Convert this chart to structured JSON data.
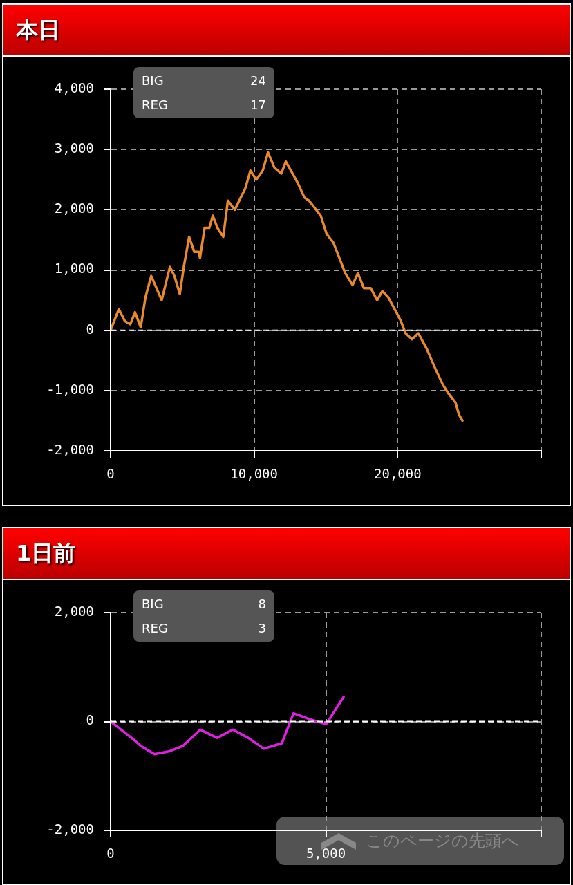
{
  "chart_data": [
    {
      "type": "line",
      "title": "本日",
      "x": [
        0,
        570,
        1000,
        1375,
        1700,
        2100,
        2430,
        2830,
        3560,
        4130,
        4450,
        4820,
        5100,
        5470,
        5830,
        6150,
        6230,
        6550,
        6880,
        7120,
        7440,
        7850,
        8170,
        8660,
        9060,
        9380,
        9740,
        10150,
        10600,
        10970,
        11410,
        11890,
        12210,
        13030,
        13510,
        13830,
        14640,
        15050,
        15530,
        15940,
        16340,
        16860,
        17230,
        17640,
        18120,
        18570,
        18930,
        19340,
        19900,
        20230,
        20550,
        21000,
        21440,
        22010,
        22650,
        23140,
        23540,
        24030,
        24270,
        24510
      ],
      "series": [
        {
          "color": "#e8892a",
          "values": [
            0,
            350,
            150,
            100,
            300,
            50,
            550,
            900,
            500,
            1050,
            900,
            600,
            1050,
            1550,
            1300,
            1300,
            1200,
            1700,
            1700,
            1900,
            1700,
            1550,
            2150,
            2000,
            2200,
            2350,
            2650,
            2500,
            2650,
            2950,
            2700,
            2600,
            2800,
            2450,
            2200,
            2150,
            1900,
            1600,
            1450,
            1200,
            950,
            750,
            950,
            700,
            700,
            500,
            650,
            550,
            300,
            150,
            -50,
            -150,
            -50,
            -300,
            -650,
            -900,
            -1050,
            -1200,
            -1400,
            -1500
          ]
        }
      ],
      "xlim": [
        0,
        30000
      ],
      "xticks": [
        0,
        {
          "value": 10000,
          "label": "10,000"
        },
        {
          "value": 20000,
          "label": "20,000"
        },
        {
          "value": 30000,
          "label": null
        }
      ],
      "ylim": [
        -2000,
        4000
      ],
      "yticks": [
        {
          "value": -2000,
          "label": "-2,000"
        },
        {
          "value": -1000,
          "label": "-1,000"
        },
        0,
        {
          "value": 1000,
          "label": "1,000"
        },
        {
          "value": 2000,
          "label": "2,000"
        },
        {
          "value": 3000,
          "label": "3,000"
        },
        {
          "value": 4000,
          "label": "4,000"
        }
      ],
      "ref_lines": [
        {
          "axis": "y",
          "value": 0,
          "label": null,
          "color": "#ffffff",
          "line_style": "dashed"
        }
      ],
      "grid": true,
      "legend": false,
      "marker": "none",
      "line_style": "solid",
      "annotations": [
        "BIG",
        "24",
        "REG",
        "17"
      ]
    },
    {
      "type": "line",
      "title": "1日前",
      "x": [
        0,
        487,
        703,
        1018,
        1352,
        1677,
        2083,
        2473,
        2841,
        3193,
        3560,
        3977,
        4248,
        4600,
        5005,
        5411
      ],
      "series": [
        {
          "color": "#e020e0",
          "values": [
            0,
            -300,
            -450,
            -600,
            -550,
            -450,
            -150,
            -300,
            -150,
            -300,
            -500,
            -400,
            150,
            50,
            -50,
            450
          ]
        }
      ],
      "xlim": [
        0,
        10000
      ],
      "xticks": [
        0,
        {
          "value": 5000,
          "label": "5,000"
        },
        {
          "value": 10000,
          "label": null
        }
      ],
      "ylim": [
        -2000,
        2000
      ],
      "yticks": [
        {
          "value": -2000,
          "label": "-2,000"
        },
        0,
        {
          "value": 2000,
          "label": "2,000"
        }
      ],
      "ref_lines": [
        {
          "axis": "y",
          "value": 0,
          "label": null,
          "color": "#ffffff",
          "line_style": "dashed"
        }
      ],
      "grid": true,
      "legend": false,
      "marker": "none",
      "line_style": "solid",
      "annotations": [
        "BIG",
        "8",
        "REG",
        "3",
        "このページの先頭へ"
      ]
    }
  ]
}
